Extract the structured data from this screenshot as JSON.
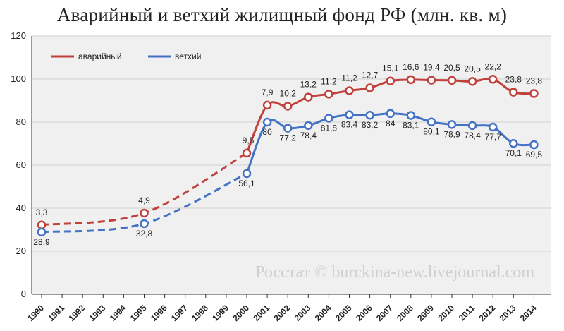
{
  "title": "Аварийный и ветхий жилищный фонд РФ (млн. кв. м)",
  "watermark": "Росстат © burckina-new.livejournal.com",
  "colors": {
    "plot_bg": "#f0f0f0",
    "grid": "#d0d0d0",
    "axis": "#333333",
    "avariyny": "#c0403c",
    "vetkhiy": "#4472c4"
  },
  "chart_data": {
    "type": "line",
    "title": "Аварийный и ветхий жилищный фонд РФ (млн. кв. м)",
    "xlabel": "",
    "ylabel": "",
    "ylim": [
      0,
      120
    ],
    "yticks": [
      0,
      20,
      40,
      60,
      80,
      100,
      120
    ],
    "grid": true,
    "legend_position": "top-left",
    "x_categories": [
      "1990",
      "1991",
      "1992",
      "1993",
      "1994",
      "1995",
      "1996",
      "1997",
      "1998",
      "1999",
      "2000",
      "2001",
      "2002",
      "2003",
      "2004",
      "2005",
      "2006",
      "2007",
      "2008",
      "2009",
      "2010",
      "2011",
      "2012",
      "2013",
      "2014"
    ],
    "series": [
      {
        "name": "аварийный",
        "color": "#c0403c",
        "points": [
          {
            "x": "1990",
            "y": 32.2,
            "label": "3,3"
          },
          {
            "x": "1995",
            "y": 37.7,
            "label": "4,9"
          },
          {
            "x": "2000",
            "y": 65.6,
            "label": "9,5"
          },
          {
            "x": "2001",
            "y": 87.9,
            "label": "7,9"
          },
          {
            "x": "2002",
            "y": 87.4,
            "label": "10,2"
          },
          {
            "x": "2003",
            "y": 91.6,
            "label": "13,2"
          },
          {
            "x": "2004",
            "y": 93.0,
            "label": "11,2"
          },
          {
            "x": "2005",
            "y": 94.6,
            "label": "11,2"
          },
          {
            "x": "2006",
            "y": 95.9,
            "label": "12,7"
          },
          {
            "x": "2007",
            "y": 99.1,
            "label": "15,1"
          },
          {
            "x": "2008",
            "y": 99.7,
            "label": "16,6"
          },
          {
            "x": "2009",
            "y": 99.5,
            "label": "19,4"
          },
          {
            "x": "2010",
            "y": 99.4,
            "label": "20,5"
          },
          {
            "x": "2011",
            "y": 98.9,
            "label": "20,5"
          },
          {
            "x": "2012",
            "y": 99.9,
            "label": "22,2"
          },
          {
            "x": "2013",
            "y": 93.9,
            "label": "23,8"
          },
          {
            "x": "2014",
            "y": 93.3,
            "label": "23,8"
          }
        ]
      },
      {
        "name": "ветхий",
        "color": "#4472c4",
        "points": [
          {
            "x": "1990",
            "y": 28.9,
            "label": "28,9"
          },
          {
            "x": "1995",
            "y": 32.8,
            "label": "32,8"
          },
          {
            "x": "2000",
            "y": 56.1,
            "label": "56,1"
          },
          {
            "x": "2001",
            "y": 80,
            "label": "80"
          },
          {
            "x": "2002",
            "y": 77.2,
            "label": "77,2"
          },
          {
            "x": "2003",
            "y": 78.4,
            "label": "78,4"
          },
          {
            "x": "2004",
            "y": 81.8,
            "label": "81,8"
          },
          {
            "x": "2005",
            "y": 83.4,
            "label": "83,4"
          },
          {
            "x": "2006",
            "y": 83.2,
            "label": "83,2"
          },
          {
            "x": "2007",
            "y": 84,
            "label": "84"
          },
          {
            "x": "2008",
            "y": 83.1,
            "label": "83,1"
          },
          {
            "x": "2009",
            "y": 80.1,
            "label": "80,1"
          },
          {
            "x": "2010",
            "y": 78.9,
            "label": "78,9"
          },
          {
            "x": "2011",
            "y": 78.4,
            "label": "78,4"
          },
          {
            "x": "2012",
            "y": 77.7,
            "label": "77,7"
          },
          {
            "x": "2013",
            "y": 70.1,
            "label": "70,1"
          },
          {
            "x": "2014",
            "y": 69.5,
            "label": "69,5"
          }
        ]
      }
    ]
  }
}
